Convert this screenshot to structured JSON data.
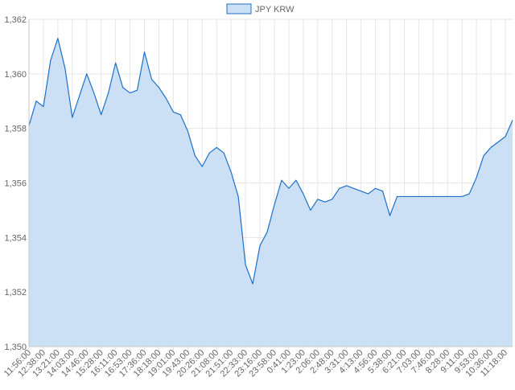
{
  "chart_data": {
    "type": "area",
    "series": [
      {
        "name": "JPY KRW",
        "color": "#1f6fc6",
        "fill": "#cce0f5",
        "x": [
          "11:56:00",
          "12:17:00",
          "12:38:00",
          "12:59:00",
          "13:21:00",
          "13:42:00",
          "14:03:00",
          "14:25:00",
          "14:46:00",
          "15:07:00",
          "15:28:00",
          "15:49:00",
          "16:11:00",
          "16:32:00",
          "16:53:00",
          "17:14:00",
          "17:36:00",
          "17:57:00",
          "18:18:00",
          "18:39:00",
          "19:01:00",
          "19:22:00",
          "19:43:00",
          "20:04:00",
          "20:26:00",
          "20:47:00",
          "21:08:00",
          "21:29:00",
          "21:51:00",
          "22:12:00",
          "22:33:00",
          "22:54:00",
          "23:16:00",
          "23:37:00",
          "23:58:00",
          "0:19:00",
          "0:41:00",
          "1:02:00",
          "1:23:00",
          "1:44:00",
          "2:06:00",
          "2:27:00",
          "2:48:00",
          "3:09:00",
          "3:31:00",
          "3:52:00",
          "4:13:00",
          "4:34:00",
          "4:56:00",
          "5:17:00",
          "5:38:00",
          "5:59:00",
          "6:21:00",
          "6:42:00",
          "7:03:00",
          "7:24:00",
          "7:46:00",
          "8:07:00",
          "8:28:00",
          "8:49:00",
          "9:11:00",
          "9:32:00",
          "9:53:00",
          "10:14:00",
          "10:36:00",
          "10:57:00",
          "11:18:00",
          "11:40:00"
        ],
        "values": [
          1358.1,
          1359.0,
          1358.8,
          1360.5,
          1361.3,
          1360.2,
          1358.4,
          1359.2,
          1360.0,
          1359.3,
          1358.5,
          1359.3,
          1360.4,
          1359.5,
          1359.3,
          1359.4,
          1360.8,
          1359.8,
          1359.5,
          1359.1,
          1358.6,
          1358.5,
          1357.9,
          1357.0,
          1356.6,
          1357.1,
          1357.3,
          1357.1,
          1356.4,
          1355.5,
          1353.0,
          1352.3,
          1353.7,
          1354.2,
          1355.2,
          1356.1,
          1355.8,
          1356.1,
          1355.6,
          1355.0,
          1355.4,
          1355.3,
          1355.4,
          1355.8,
          1355.9,
          1355.8,
          1355.7,
          1355.6,
          1355.8,
          1355.7,
          1354.8,
          1355.5,
          1355.5,
          1355.5,
          1355.5,
          1355.5,
          1355.5,
          1355.5,
          1355.5,
          1355.5,
          1355.5,
          1355.6,
          1356.2,
          1357.0,
          1357.3,
          1357.5,
          1357.7,
          1358.3
        ]
      }
    ],
    "x_tick_labels": [
      "11:56:00",
      "12:38:00",
      "13:21:00",
      "14:03:00",
      "14:46:00",
      "15:28:00",
      "16:11:00",
      "16:53:00",
      "17:36:00",
      "18:18:00",
      "19:01:00",
      "19:43:00",
      "20:26:00",
      "21:08:00",
      "21:51:00",
      "22:33:00",
      "23:16:00",
      "23:58:00",
      "0:41:00",
      "1:23:00",
      "2:06:00",
      "2:48:00",
      "3:31:00",
      "4:13:00",
      "4:56:00",
      "5:38:00",
      "6:21:00",
      "7:03:00",
      "7:46:00",
      "8:28:00",
      "9:11:00",
      "9:53:00",
      "10:36:00",
      "11:18:00"
    ],
    "y_ticks": [
      1350,
      1352,
      1354,
      1356,
      1358,
      1360,
      1362
    ],
    "y_tick_labels": [
      "1,350",
      "1,352",
      "1,354",
      "1,356",
      "1,358",
      "1,360",
      "1,362"
    ],
    "ylim": [
      1350,
      1362
    ],
    "grid": true,
    "legend": "top-center",
    "title": "",
    "xlabel": "",
    "ylabel": ""
  }
}
